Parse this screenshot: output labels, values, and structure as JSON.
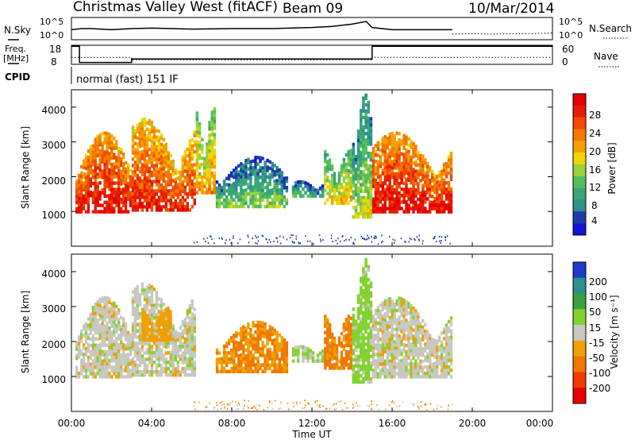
{
  "header": {
    "radar": "Christmas Valley West (fitACF)",
    "beam": "Beam 09",
    "date": "10/Mar/2014"
  },
  "strips": {
    "nsky_label": "N.Sky",
    "nsearch_label": "N.Search",
    "noise_ticks": [
      "10^5",
      "10^0"
    ],
    "freq_label_1": "Freq.",
    "freq_label_2": "[MHz]",
    "freq_ticks": [
      "18",
      "8"
    ],
    "nave_label": "Nave",
    "nave_ticks": [
      "60",
      "0"
    ],
    "cpid_label": "CPID",
    "cpid_text": "normal (fast) 151 IF"
  },
  "axes": {
    "ylabel": "Slant Range [km]",
    "xlabel": "Time UT",
    "yticks": [
      "1000",
      "2000",
      "3000",
      "4000"
    ],
    "xticks": [
      "00:00",
      "04:00",
      "08:00",
      "12:00",
      "16:00",
      "20:00",
      "00:00"
    ]
  },
  "colorbars": {
    "power_label": "Power [dB]",
    "power_ticks": [
      "4",
      "8",
      "12",
      "16",
      "20",
      "24",
      "28"
    ],
    "velocity_label": "Velocity [m s⁻¹]",
    "velocity_ticks": [
      "200",
      "100",
      "50",
      "15",
      "-15",
      "-50",
      "-100",
      "-200"
    ]
  },
  "colors": {
    "power_scale": [
      "#1414d6",
      "#1e3caa",
      "#2f8f8c",
      "#3aa678",
      "#55c05a",
      "#9ad23c",
      "#f0d600",
      "#f5a000",
      "#f57800",
      "#f04a00",
      "#e61e00",
      "#e60000"
    ],
    "velocity_scale": [
      "#1e3cc8",
      "#2f8f8c",
      "#3aa040",
      "#82d232",
      "#c8c8c0",
      "#f0a000",
      "#f07800",
      "#f03c00",
      "#e60000"
    ]
  },
  "chart_data": [
    {
      "type": "line",
      "title": "N.Sky / N.Search noise",
      "x_range_hours": [
        0,
        24
      ],
      "yscale": "log",
      "ylim": [
        "10^0",
        "10^5"
      ],
      "series": [
        {
          "name": "N.Sky",
          "x": [
            0,
            0.5,
            1,
            2,
            3,
            4,
            6,
            8,
            10,
            12,
            13,
            14,
            14.7,
            15,
            16,
            17,
            18,
            19
          ],
          "y_frac": [
            0.45,
            0.5,
            0.5,
            0.45,
            0.5,
            0.52,
            0.48,
            0.5,
            0.5,
            0.55,
            0.6,
            0.7,
            0.82,
            0.55,
            0.45,
            0.45,
            0.45,
            0.45
          ]
        },
        {
          "name": "N.Search",
          "x": [
            19,
            20,
            21,
            22,
            23,
            24
          ],
          "y_frac": [
            0.25,
            0.27,
            0.25,
            0.27,
            0.27,
            0.3
          ]
        }
      ]
    },
    {
      "type": "line",
      "title": "Frequency / Nave",
      "x_range_hours": [
        0,
        24
      ],
      "series": [
        {
          "name": "Freq",
          "unit": "MHz",
          "x": [
            0,
            0.4,
            0.4,
            3,
            3,
            15,
            15,
            19,
            19,
            24
          ],
          "y": [
            17.5,
            17.5,
            9,
            9,
            10.8,
            10.8,
            17.5,
            17.5,
            17.5,
            17.5
          ]
        },
        {
          "name": "Nave",
          "x": [
            0,
            3,
            3,
            15,
            15,
            24
          ],
          "y": [
            22,
            22,
            14,
            14,
            22,
            22
          ]
        }
      ]
    },
    {
      "type": "heatmap",
      "title": "Power [dB]",
      "xlabel": "Time UT",
      "ylabel": "Slant Range [km]",
      "x_range_hours": [
        0,
        24
      ],
      "ylim_km": [
        0,
        4500
      ],
      "clim": [
        0,
        30
      ],
      "regions": [
        {
          "t0": 0.2,
          "t1": 3.0,
          "r0": 950,
          "r1": 3300,
          "power": 24
        },
        {
          "t0": 3.0,
          "t1": 6.2,
          "r0": 1000,
          "r1": 3700,
          "power": 22
        },
        {
          "t0": 6.2,
          "t1": 7.2,
          "r0": 1500,
          "r1": 4000,
          "power": 16
        },
        {
          "t0": 7.2,
          "t1": 10.8,
          "r0": 1100,
          "r1": 2600,
          "power": 9
        },
        {
          "t0": 11.0,
          "t1": 12.6,
          "r0": 1400,
          "r1": 1900,
          "power": 8
        },
        {
          "t0": 12.6,
          "t1": 14.0,
          "r0": 1200,
          "r1": 2800,
          "power": 14
        },
        {
          "t0": 14.0,
          "t1": 15.0,
          "r0": 800,
          "r1": 4400,
          "power": 11
        },
        {
          "t0": 15.0,
          "t1": 19.0,
          "r0": 950,
          "r1": 3300,
          "power": 24
        }
      ]
    },
    {
      "type": "heatmap",
      "title": "Velocity [m s^-1]",
      "xlabel": "Time UT",
      "ylabel": "Slant Range [km]",
      "x_range_hours": [
        0,
        24
      ],
      "ylim_km": [
        0,
        4500
      ],
      "clim": [
        -250,
        250
      ],
      "regions": [
        {
          "t0": 0.2,
          "t1": 3.0,
          "r0": 950,
          "r1": 3300,
          "velocity": 0
        },
        {
          "t0": 3.0,
          "t1": 6.2,
          "r0": 1000,
          "r1": 3700,
          "velocity": 0
        },
        {
          "t0": 3.5,
          "t1": 5.0,
          "r0": 2000,
          "r1": 3000,
          "velocity": -40
        },
        {
          "t0": 7.2,
          "t1": 10.8,
          "r0": 1100,
          "r1": 2600,
          "velocity": -60
        },
        {
          "t0": 11.0,
          "t1": 12.6,
          "r0": 1400,
          "r1": 1900,
          "velocity": 20
        },
        {
          "t0": 12.6,
          "t1": 14.0,
          "r0": 1200,
          "r1": 2800,
          "velocity": -70
        },
        {
          "t0": 14.0,
          "t1": 15.0,
          "r0": 800,
          "r1": 4400,
          "velocity": 30
        },
        {
          "t0": 15.0,
          "t1": 19.0,
          "r0": 950,
          "r1": 3300,
          "velocity": 0
        }
      ]
    }
  ]
}
